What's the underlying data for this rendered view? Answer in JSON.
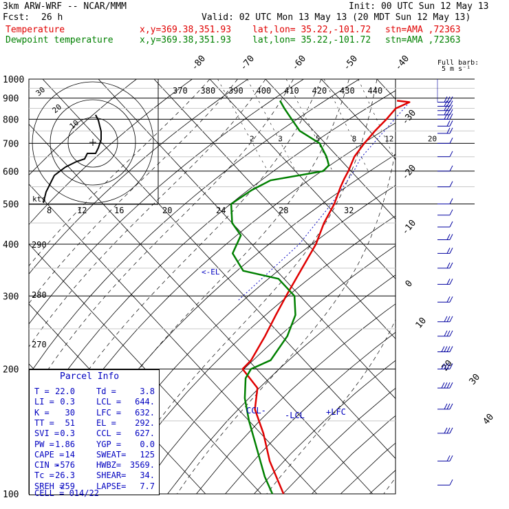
{
  "header": {
    "model": "3km ARW-WRF -- NCAR/MMM",
    "init": "Init: 00 UTC Sun 12 May 13",
    "fcst_label": "Fcst:",
    "fcst_value": "26 h",
    "valid": "Valid: 02 UTC Mon 13 May 13 (20 MDT Sun 12 May 13)",
    "temp_label": "Temperature",
    "dew_label": "Dewpoint temperature",
    "xy": "x,y=369.38,351.93",
    "latlon": "lat,lon= 35.22,-101.72",
    "stn": "stn=AMA ,72363",
    "barb_title": "Full barb:",
    "barb_units": "5 m s⁻¹"
  },
  "colors": {
    "temperature": "#e00000",
    "dewpoint": "#008000",
    "parcel": "#0000c0",
    "wind": "#0000a0",
    "grid": "#000000"
  },
  "chart_data": {
    "type": "line",
    "kind": "skew-T log-P",
    "y_axis": {
      "scale": "log",
      "range": [
        1000,
        100
      ],
      "ticks": [
        "100",
        "200",
        "300",
        "400",
        "500",
        "600",
        "700",
        "800",
        "900",
        "1000"
      ]
    },
    "isotherm_labels": [
      "-80",
      "-70",
      "-60",
      "-50",
      "-40",
      "-30",
      "-20",
      "-10",
      "0",
      "10",
      "20",
      "30",
      "40"
    ],
    "theta_e_labels": [
      "370",
      "380",
      "390",
      "400",
      "410",
      "420",
      "430",
      "440"
    ],
    "theta_labels": [
      "290",
      "280",
      "270"
    ],
    "mixing_ratio_labels": [
      "2",
      "3",
      "5",
      "8",
      "12",
      "20"
    ],
    "level_markers": [
      "CCL",
      "LCL",
      "LFC",
      "EL"
    ],
    "hodograph": {
      "speed_rings": [
        "30",
        "20",
        "10"
      ],
      "units": "kts",
      "scale_labels": [
        "8",
        "12",
        "16",
        "20",
        "24",
        "28",
        "32"
      ],
      "trace_uv": [
        [
          -18,
          -22
        ],
        [
          -17,
          -18
        ],
        [
          -14,
          -12
        ],
        [
          -10,
          -9
        ],
        [
          -6,
          -7
        ],
        [
          -3,
          -6
        ],
        [
          -2,
          -4
        ],
        [
          1,
          -4
        ],
        [
          2,
          -2
        ],
        [
          3,
          1
        ],
        [
          3,
          4
        ],
        [
          2,
          8
        ],
        [
          1,
          10
        ]
      ]
    },
    "series": [
      {
        "name": "Temperature",
        "points": [
          [
            887,
            20.0
          ],
          [
            880,
            22.0
          ],
          [
            850,
            18.5
          ],
          [
            800,
            15.0
          ],
          [
            750,
            11.0
          ],
          [
            700,
            7.0
          ],
          [
            650,
            3.0
          ],
          [
            600,
            -0.5
          ],
          [
            575,
            -2.5
          ],
          [
            550,
            -4.5
          ],
          [
            500,
            -8.5
          ],
          [
            450,
            -13.5
          ],
          [
            400,
            -18.5
          ],
          [
            350,
            -25.0
          ],
          [
            300,
            -32.5
          ],
          [
            270,
            -37.5
          ],
          [
            240,
            -43.0
          ],
          [
            210,
            -49.5
          ],
          [
            200,
            -52.5
          ],
          [
            180,
            -53.0
          ],
          [
            160,
            -57.0
          ],
          [
            140,
            -59.5
          ],
          [
            120,
            -63.0
          ],
          [
            100,
            -66.0
          ]
        ]
      },
      {
        "name": "Dewpoint temperature",
        "points": [
          [
            887,
            -1.0
          ],
          [
            850,
            -1.5
          ],
          [
            800,
            -2.0
          ],
          [
            750,
            -2.5
          ],
          [
            700,
            -1.0
          ],
          [
            650,
            -2.0
          ],
          [
            620,
            -3.0
          ],
          [
            600,
            -5.0
          ],
          [
            570,
            -16.0
          ],
          [
            540,
            -21.0
          ],
          [
            500,
            -27.0
          ],
          [
            450,
            -30.0
          ],
          [
            420,
            -30.5
          ],
          [
            380,
            -35.0
          ],
          [
            345,
            -36.0
          ],
          [
            330,
            -31.0
          ],
          [
            300,
            -31.0
          ],
          [
            270,
            -34.0
          ],
          [
            240,
            -39.0
          ],
          [
            210,
            -46.0
          ],
          [
            200,
            -51.0
          ],
          [
            190,
            -53.5
          ],
          [
            170,
            -57.0
          ],
          [
            150,
            -60.0
          ],
          [
            130,
            -63.0
          ],
          [
            110,
            -66.5
          ],
          [
            100,
            -68.0
          ]
        ]
      },
      {
        "name": "Parcel",
        "points": [
          [
            880,
            22.0
          ],
          [
            644,
            3.8
          ],
          [
            600,
            0.5
          ],
          [
            500,
            -9.0
          ],
          [
            400,
            -21.5
          ],
          [
            292,
            -42.0
          ]
        ]
      }
    ],
    "wind_profile": [
      {
        "p": 880,
        "u": 18,
        "v": 10
      },
      {
        "p": 860,
        "u": 16,
        "v": 12
      },
      {
        "p": 840,
        "u": 14,
        "v": 12
      },
      {
        "p": 820,
        "u": 12,
        "v": 13
      },
      {
        "p": 800,
        "u": 10,
        "v": 13
      },
      {
        "p": 770,
        "u": 8,
        "v": 12
      },
      {
        "p": 740,
        "u": 6,
        "v": 10
      },
      {
        "p": 700,
        "u": 4,
        "v": 8
      },
      {
        "p": 650,
        "u": 3,
        "v": 6
      },
      {
        "p": 600,
        "u": 4,
        "v": 4
      },
      {
        "p": 550,
        "u": 5,
        "v": 2
      },
      {
        "p": 500,
        "u": 6,
        "v": 1
      },
      {
        "p": 470,
        "u": 7,
        "v": 0
      },
      {
        "p": 440,
        "u": 8,
        "v": -1
      },
      {
        "p": 410,
        "u": 9,
        "v": -2
      },
      {
        "p": 380,
        "u": 10,
        "v": -3
      },
      {
        "p": 350,
        "u": 11,
        "v": -3
      },
      {
        "p": 320,
        "u": 12,
        "v": -4
      },
      {
        "p": 290,
        "u": 13,
        "v": -4
      },
      {
        "p": 260,
        "u": 16,
        "v": -5
      },
      {
        "p": 240,
        "u": 18,
        "v": -4
      },
      {
        "p": 220,
        "u": 22,
        "v": -3
      },
      {
        "p": 200,
        "u": 25,
        "v": -2
      },
      {
        "p": 180,
        "u": 22,
        "v": -4
      },
      {
        "p": 160,
        "u": 18,
        "v": -6
      },
      {
        "p": 140,
        "u": 14,
        "v": -7
      },
      {
        "p": 120,
        "u": 10,
        "v": -6
      },
      {
        "p": 105,
        "u": 6,
        "v": -4
      }
    ]
  },
  "parcel_info": {
    "title": "Parcel Info",
    "rows": [
      [
        "T =",
        "22.0",
        "Td =",
        "3.8"
      ],
      [
        "LI =",
        "0.3",
        "LCL =",
        "644."
      ],
      [
        "K =",
        "30",
        "LFC =",
        "632."
      ],
      [
        "TT =",
        "51",
        "EL =",
        "292."
      ],
      [
        "SVI =",
        "0.3",
        "CCL =",
        "627."
      ],
      [
        "PW =",
        "1.86",
        "YGP =",
        "0.0"
      ],
      [
        "CAPE =",
        "14",
        "SWEAT=",
        "125"
      ],
      [
        "CIN =",
        "-576",
        "HWBZ=",
        "3569."
      ],
      [
        "Tc =",
        "26.3",
        "SHEAR=",
        "34."
      ],
      [
        "SREH =",
        "259",
        "LAPSE=",
        "7.7"
      ]
    ],
    "cell": "CELL = 014/22"
  }
}
